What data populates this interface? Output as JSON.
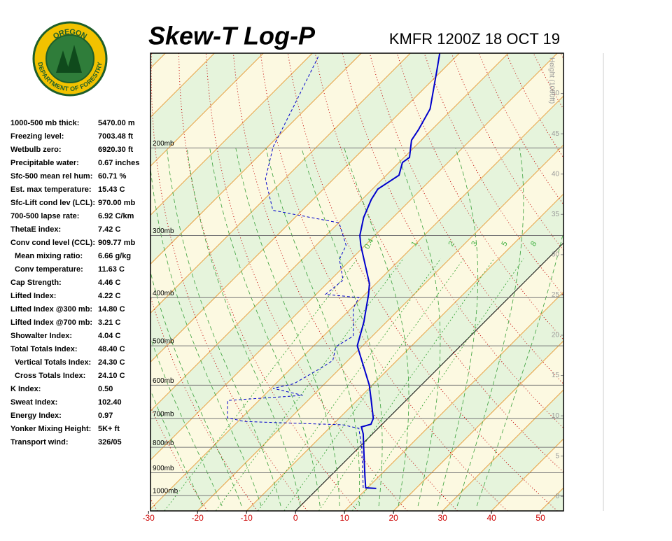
{
  "logo": {
    "top": "OREGON",
    "bottom": "DEPARTMENT OF FORESTRY"
  },
  "indices": [
    [
      "1000-500 mb thick:",
      "5470.00 m"
    ],
    [
      "Freezing level:",
      "7003.48 ft"
    ],
    [
      "Wetbulb zero:",
      "6920.30 ft"
    ],
    [
      "Precipitable water:",
      "0.67 inches"
    ],
    [
      "Sfc-500 mean rel hum:",
      "60.71 %"
    ],
    [
      "Est. max temperature:",
      "15.43 C"
    ],
    [
      "Sfc-Lift cond lev (LCL):",
      "970.00 mb"
    ],
    [
      "700-500 lapse rate:",
      "6.92 C/km"
    ],
    [
      "ThetaE index:",
      "7.42 C"
    ],
    [
      "Conv cond level (CCL):",
      "909.77 mb"
    ],
    [
      "Mean mixing ratio:",
      "6.66 g/kg"
    ],
    [
      "Conv temperature:",
      "11.63 C"
    ],
    [
      "Cap Strength:",
      "4.46 C"
    ],
    [
      "Lifted Index:",
      "4.22 C"
    ],
    [
      "Lifted Index @300 mb:",
      "14.80 C"
    ],
    [
      "Lifted Index @700 mb:",
      "3.21 C"
    ],
    [
      "Showalter Index:",
      "4.04 C"
    ],
    [
      "Total Totals Index:",
      "48.40 C"
    ],
    [
      "Vertical Totals Index:",
      "24.30 C"
    ],
    [
      "Cross Totals Index:",
      "24.10 C"
    ],
    [
      "K Index:",
      "0.50"
    ],
    [
      "Sweat Index:",
      "102.40"
    ],
    [
      "Energy Index:",
      "0.97"
    ],
    [
      "Yonker Mixing Height:",
      "5K+ ft"
    ],
    [
      "Transport wind:",
      "326/05"
    ]
  ],
  "chart_data": {
    "type": "skewt",
    "title": "Skew-T Log-P",
    "subtitle": "KMFR 1200Z 18 OCT 19",
    "xlim": [
      -29.6,
      54.7
    ],
    "xticks": [
      -30,
      -20,
      -10,
      0,
      10,
      20,
      30,
      40,
      50
    ],
    "ylim": [
      1074,
      129
    ],
    "yscale": "log",
    "yticks": [
      {
        "value": 1000,
        "label": "1000mb"
      },
      {
        "value": 900,
        "label": "900mb"
      },
      {
        "value": 800,
        "label": "800mb"
      },
      {
        "value": 700,
        "label": "700mb"
      },
      {
        "value": 600,
        "label": "600mb"
      },
      {
        "value": 500,
        "label": "500mb"
      },
      {
        "value": 400,
        "label": "400mb"
      },
      {
        "value": 300,
        "label": "300mb"
      },
      {
        "value": 200,
        "label": "200mb"
      }
    ],
    "y2label": "Height (1000ft)",
    "y2lim": [
      -1.8,
      55
    ],
    "y2ticks": [
      0,
      5,
      10,
      15,
      20,
      25,
      30,
      35,
      40,
      45,
      50
    ],
    "mixing_ratios": [
      0.4,
      1,
      2,
      3,
      5,
      8
    ],
    "series": [
      {
        "color": "#0000cc",
        "dashed": false,
        "pressure": [
          968,
          965,
          913,
          803,
          752,
          728,
          719,
          700,
          640,
          600,
          553,
          500,
          448,
          394,
          375,
          314,
          300,
          276,
          254,
          242,
          227,
          214,
          209,
          193,
          184,
          167,
          140,
          129
        ],
        "values": [
          11.9,
          9.6,
          7.0,
          1.1,
          -1.9,
          -3.7,
          -2.3,
          -3.0,
          -7.4,
          -10.6,
          -15.3,
          -21.1,
          -24.6,
          -29.3,
          -31.3,
          -40.9,
          -43.1,
          -46.0,
          -48.1,
          -48.9,
          -47.4,
          -49.3,
          -48.9,
          -52.0,
          -52.7,
          -54.6,
          -61.0,
          -64.0
        ]
      },
      {
        "color": "#0000cc",
        "dashed": true,
        "pressure": [
          965,
          803,
          733,
          721,
          710,
          698,
          644,
          629,
          609,
          596,
          553,
          535,
          502,
          478,
          420,
          400,
          394,
          369,
          335,
          314,
          283,
          267,
          231,
          199,
          164,
          131
        ],
        "values": [
          9.1,
          0.7,
          -3.9,
          -7.9,
          -28.6,
          -32.9,
          -36.4,
          -22.1,
          -29.6,
          -26.3,
          -23.9,
          -23.1,
          -25.3,
          -23.9,
          -29.6,
          -30.6,
          -38.1,
          -37.4,
          -42.4,
          -43.9,
          -49.9,
          -66.0,
          -73.9,
          -78.9,
          -83.1,
          -88.1
        ]
      }
    ]
  }
}
